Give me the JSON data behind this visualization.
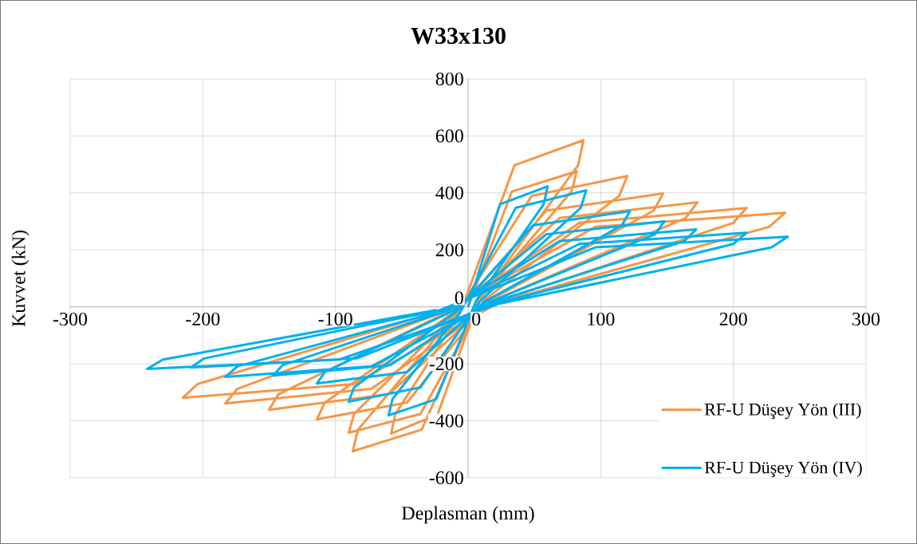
{
  "chart_data": {
    "type": "line",
    "title": "W33x130",
    "xlabel": "Deplasman (mm)",
    "ylabel": "Kuvvet (kN)",
    "xlim": [
      -300,
      300
    ],
    "xticks": [
      -300,
      -200,
      -100,
      0,
      100,
      200,
      300
    ],
    "ylim": [
      -600,
      800
    ],
    "yticks": [
      -600,
      -400,
      -200,
      0,
      200,
      400,
      600,
      800
    ],
    "grid": true,
    "legend": "bottom right",
    "marker": "none",
    "line_style": "solid",
    "series": [
      {
        "name": "RF-U Düşey Yön (III)",
        "color": "#f79646",
        "x": [
          0,
          33,
          82,
          78,
          8,
          -23,
          -58,
          -55,
          -6,
          35,
          87,
          83,
          9,
          -35,
          -87,
          -83,
          -9,
          48,
          120,
          114,
          12,
          -36,
          -90,
          -86,
          -9,
          59,
          147,
          140,
          15,
          -46,
          -114,
          -108,
          -11,
          69,
          173,
          164,
          17,
          -60,
          -150,
          -143,
          -15,
          84,
          210,
          200,
          21,
          -73,
          -183,
          -174,
          -18,
          96,
          239,
          227,
          24,
          -86,
          -215,
          -204,
          -22
        ],
        "values": [
          0,
          405,
          476,
          405,
          24,
          -378,
          -445,
          -378,
          -22,
          497,
          585,
          497,
          29,
          -431,
          -507,
          -431,
          -25,
          390,
          459,
          390,
          23,
          -376,
          -442,
          -376,
          -22,
          338,
          398,
          338,
          20,
          -336,
          -395,
          -336,
          -20,
          312,
          367,
          312,
          18,
          -307,
          -361,
          -307,
          -18,
          295,
          347,
          295,
          17,
          -288,
          -339,
          -288,
          -17,
          281,
          330,
          281,
          17,
          -271,
          -319,
          -271,
          -16
        ]
      },
      {
        "name": "RF-U Düşey Yön (IV)",
        "color": "#00b0f0",
        "x": [
          0,
          24,
          60,
          57,
          6,
          -24,
          -60,
          -57,
          -6,
          36,
          89,
          85,
          9,
          -36,
          -90,
          -86,
          -9,
          49,
          122,
          116,
          12,
          -46,
          -114,
          -108,
          -11,
          59,
          148,
          141,
          15,
          -59,
          -147,
          -140,
          -15,
          69,
          172,
          163,
          17,
          -73,
          -183,
          -174,
          -18,
          84,
          210,
          200,
          21,
          -84,
          -209,
          -199,
          -21,
          96,
          241,
          229,
          24,
          -97,
          -242,
          -230,
          -24
        ],
        "values": [
          0,
          360,
          423,
          360,
          21,
          -324,
          -381,
          -324,
          -19,
          348,
          409,
          348,
          20,
          -283,
          -333,
          -283,
          -17,
          286,
          336,
          286,
          17,
          -229,
          -269,
          -229,
          -13,
          255,
          300,
          255,
          15,
          -205,
          -241,
          -205,
          -12,
          231,
          272,
          231,
          14,
          -209,
          -246,
          -209,
          -12,
          221,
          260,
          221,
          13,
          -181,
          -213,
          -181,
          -11,
          209,
          246,
          209,
          12,
          -185,
          -218,
          -185,
          -11
        ]
      }
    ]
  }
}
